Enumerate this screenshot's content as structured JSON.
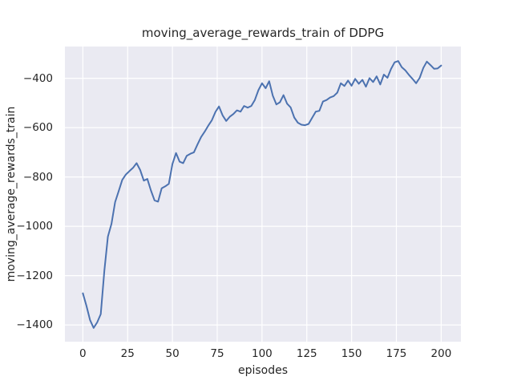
{
  "chart_data": {
    "type": "line",
    "title": "moving_average_rewards_train of DDPG",
    "xlabel": "episodes",
    "ylabel": "moving_average_rewards_train",
    "xlim": [
      -10,
      211
    ],
    "ylim": [
      -1468,
      -271
    ],
    "xticks": [
      0,
      25,
      50,
      75,
      100,
      125,
      150,
      175,
      200
    ],
    "yticks": [
      -400,
      -600,
      -800,
      -1000,
      -1200,
      -1400
    ],
    "grid": true,
    "legend_position": "none",
    "series": [
      {
        "name": "moving_average_rewards_train",
        "color": "#4C72B0",
        "x": [
          0,
          2,
          4,
          6,
          8,
          10,
          12,
          14,
          16,
          18,
          20,
          22,
          24,
          26,
          28,
          30,
          32,
          34,
          36,
          38,
          40,
          42,
          44,
          46,
          48,
          50,
          52,
          54,
          56,
          58,
          60,
          62,
          64,
          66,
          68,
          70,
          72,
          74,
          76,
          78,
          80,
          82,
          84,
          86,
          88,
          90,
          92,
          94,
          96,
          98,
          100,
          102,
          104,
          106,
          108,
          110,
          112,
          114,
          116,
          118,
          120,
          122,
          124,
          126,
          128,
          130,
          132,
          134,
          136,
          138,
          140,
          142,
          144,
          146,
          148,
          150,
          152,
          154,
          156,
          158,
          160,
          162,
          164,
          166,
          168,
          170,
          172,
          174,
          176,
          178,
          180,
          182,
          184,
          186,
          188,
          190,
          192,
          194,
          196,
          198,
          200
        ],
        "y": [
          -1272,
          -1322,
          -1380,
          -1412,
          -1390,
          -1356,
          -1180,
          -1042,
          -990,
          -902,
          -857,
          -812,
          -790,
          -776,
          -763,
          -744,
          -772,
          -815,
          -808,
          -855,
          -895,
          -900,
          -846,
          -838,
          -828,
          -748,
          -703,
          -738,
          -744,
          -714,
          -706,
          -700,
          -668,
          -638,
          -616,
          -592,
          -570,
          -536,
          -514,
          -550,
          -573,
          -556,
          -545,
          -530,
          -535,
          -512,
          -519,
          -512,
          -488,
          -448,
          -420,
          -440,
          -412,
          -470,
          -506,
          -497,
          -468,
          -503,
          -518,
          -559,
          -580,
          -588,
          -590,
          -585,
          -560,
          -535,
          -532,
          -494,
          -488,
          -478,
          -472,
          -458,
          -420,
          -431,
          -409,
          -430,
          -402,
          -422,
          -406,
          -434,
          -399,
          -415,
          -392,
          -425,
          -385,
          -398,
          -362,
          -335,
          -330,
          -355,
          -368,
          -386,
          -402,
          -420,
          -398,
          -358,
          -332,
          -346,
          -361,
          -360,
          -348
        ]
      }
    ]
  },
  "style": {
    "figure_bg": "#ffffff",
    "axes_bg": "#EAEAF2",
    "grid_color": "#ffffff",
    "text_color": "#262626",
    "line_color": "#4C72B0"
  }
}
